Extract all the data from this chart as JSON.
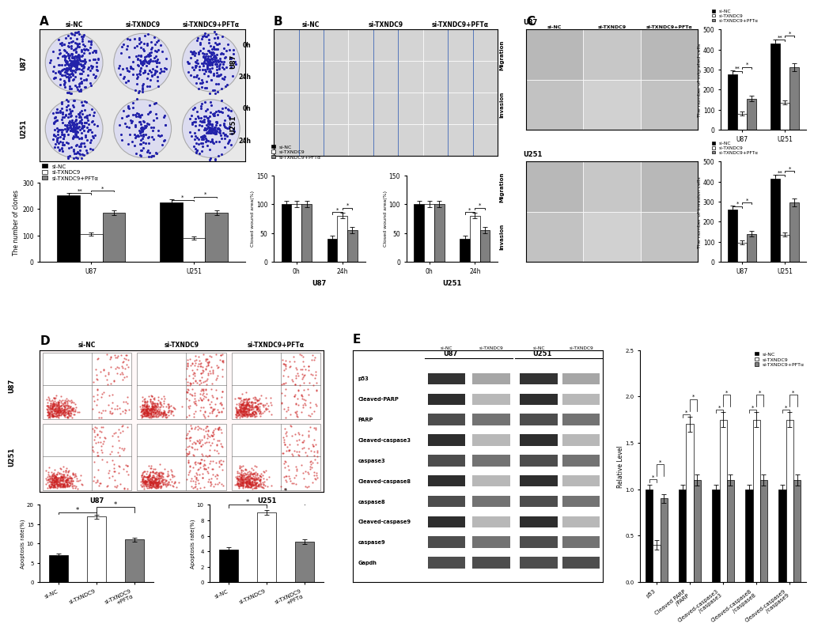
{
  "panel_A": {
    "label": "A",
    "row_labels": [
      "U87",
      "U251"
    ],
    "col_labels": [
      "si-NC",
      "si-TXNDC9",
      "si-TXNDC9+PFTα"
    ],
    "legend": [
      "si-NC",
      "si-TXNDC9",
      "si-TXNDC9+PFTα"
    ],
    "bar_colors": [
      "#000000",
      "#ffffff",
      "#808080"
    ],
    "bar_edgecolors": [
      "#000000",
      "#000000",
      "#000000"
    ],
    "ylabel": "The number of clones",
    "ylim": [
      0,
      300
    ],
    "yticks": [
      0,
      100,
      200,
      300
    ],
    "U87": [
      250,
      105,
      185
    ],
    "U251": [
      225,
      90,
      185
    ],
    "U87_err": [
      10,
      5,
      8
    ],
    "U251_err": [
      10,
      5,
      8
    ],
    "xlabel_ticks": [
      "U87",
      "U251"
    ]
  },
  "panel_B": {
    "label": "B",
    "col_labels": [
      "si-NC",
      "si-TXNDC9",
      "si-TXNDC9+PFTα"
    ],
    "legend": [
      "si-NC",
      "si-TXNDC9",
      "si-TXNDC9+PFTα"
    ],
    "bar_colors": [
      "#000000",
      "#ffffff",
      "#808080"
    ],
    "ylabel": "Closed wound area(%)",
    "ylim": [
      0,
      150
    ],
    "yticks": [
      0,
      50,
      100,
      150
    ],
    "U87_0h": [
      100,
      100,
      100
    ],
    "U87_24h": [
      40,
      80,
      55
    ],
    "U251_0h": [
      100,
      100,
      100
    ],
    "U251_24h": [
      40,
      80,
      55
    ],
    "U87_0h_err": [
      5,
      5,
      5
    ],
    "U87_24h_err": [
      5,
      5,
      5
    ],
    "U251_0h_err": [
      5,
      5,
      5
    ],
    "U251_24h_err": [
      5,
      5,
      5
    ]
  },
  "panel_C_migration": {
    "label": "C",
    "legend": [
      "si-NC",
      "si-TXNDC9",
      "si-TXNDC9+PFTα"
    ],
    "bar_colors": [
      "#000000",
      "#ffffff",
      "#808080"
    ],
    "ylabel": "The number of migrated cells",
    "ylim": [
      0,
      500
    ],
    "yticks": [
      0,
      100,
      200,
      300,
      400,
      500
    ],
    "U87": [
      275,
      80,
      155
    ],
    "U251": [
      430,
      135,
      310
    ],
    "U87_err": [
      20,
      10,
      15
    ],
    "U251_err": [
      20,
      10,
      20
    ],
    "xlabel_ticks": [
      "U87",
      "U251"
    ]
  },
  "panel_C_invasion": {
    "legend": [
      "si-NC",
      "si-TXNDC9",
      "si-TXNDC9+PFTα"
    ],
    "bar_colors": [
      "#000000",
      "#ffffff",
      "#808080"
    ],
    "ylabel": "The number of invasion cells",
    "ylim": [
      0,
      500
    ],
    "yticks": [
      0,
      100,
      200,
      300,
      400,
      500
    ],
    "U87": [
      260,
      95,
      140
    ],
    "U251": [
      415,
      135,
      295
    ],
    "U87_err": [
      20,
      10,
      15
    ],
    "U251_err": [
      20,
      10,
      20
    ],
    "xlabel_ticks": [
      "U87",
      "U251"
    ]
  },
  "panel_D": {
    "label": "D",
    "bar_colors": [
      "#000000",
      "#ffffff",
      "#808080"
    ],
    "U87_ylabel": "Apoptosis rate(%)",
    "U251_ylabel": "Apoptosis rate(%)",
    "U87_ylim": [
      0,
      20
    ],
    "U87_yticks": [
      0,
      5,
      10,
      15,
      20
    ],
    "U251_ylim": [
      0,
      10
    ],
    "U251_yticks": [
      0,
      2,
      4,
      6,
      8,
      10
    ],
    "U87_values": [
      7,
      17,
      11
    ],
    "U251_values": [
      4.2,
      9,
      5.2
    ],
    "U87_err": [
      0.5,
      0.5,
      0.5
    ],
    "U251_err": [
      0.3,
      0.3,
      0.3
    ],
    "U87_title": "U87",
    "U251_title": "U251"
  },
  "panel_E": {
    "label": "E",
    "wb_labels": [
      "p53",
      "Cleaved-PARP",
      "PARP",
      "Cleaved-caspase3",
      "caspase3",
      "Cleaved-caspase8",
      "caspase8",
      "Cleaved-caspase9",
      "caspase9",
      "Gapdh"
    ],
    "bar_groups": [
      "p53",
      "Cleaved PARP\n/PARP",
      "Cleaved-caspase3\n/caspase3",
      "Cleaved-caspase8\n/caspase8",
      "Cleaved-caspase9\n/caspase9"
    ],
    "legend": [
      "si-NC",
      "si-TXNDC9",
      "si-TXNDC9+PFTα"
    ],
    "bar_colors": [
      "#000000",
      "#ffffff",
      "#808080"
    ],
    "ylim": [
      0,
      2.5
    ],
    "yticks": [
      0,
      0.5,
      1.0,
      1.5,
      2.0,
      2.5
    ],
    "ylabel": "Relative Level",
    "values": {
      "si_NC": [
        1.0,
        1.0,
        1.0,
        1.0,
        1.0
      ],
      "si_TXNDC9": [
        0.4,
        1.7,
        1.75,
        1.75,
        1.75
      ],
      "si_TXNDC9_PFTa": [
        0.9,
        1.1,
        1.1,
        1.1,
        1.1
      ]
    },
    "err": {
      "si_NC": [
        0.05,
        0.05,
        0.05,
        0.05,
        0.05
      ],
      "si_TXNDC9": [
        0.05,
        0.08,
        0.08,
        0.08,
        0.08
      ],
      "si_TXNDC9_PFTa": [
        0.05,
        0.06,
        0.06,
        0.06,
        0.06
      ]
    },
    "lane_labels": [
      "si-NC",
      "si-TXNDC9",
      "si-NC",
      "si-TXNDC9"
    ],
    "U87_label": "U87",
    "U251_label": "U251"
  },
  "bg_color": "#ffffff"
}
